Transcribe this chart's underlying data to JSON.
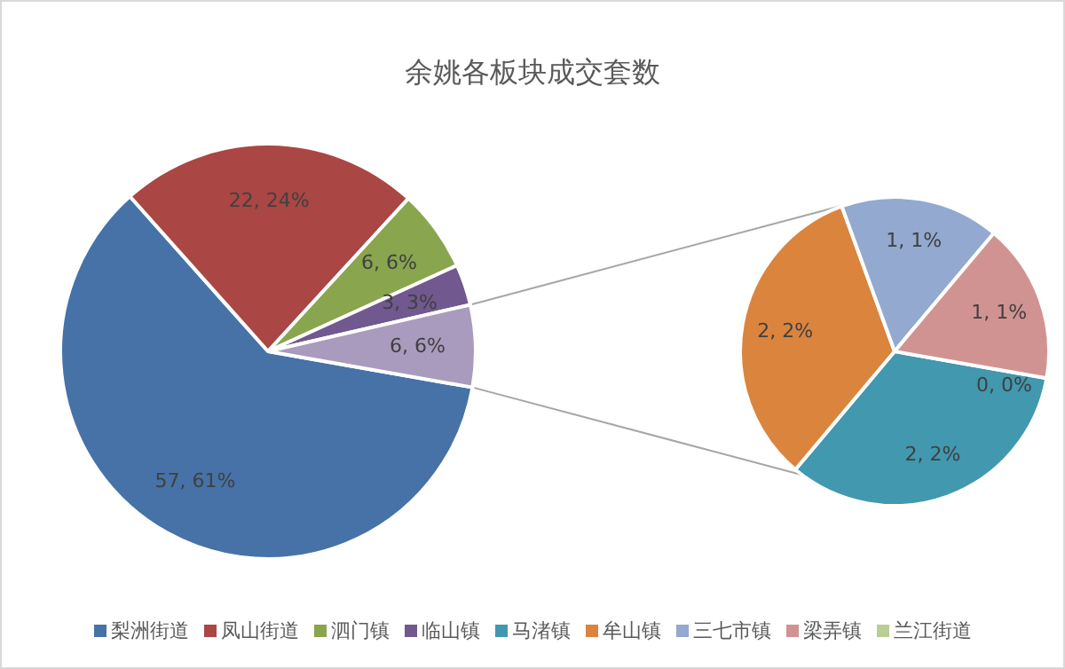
{
  "chart_data": [
    {
      "type": "pie",
      "title": "余姚各板块成交套数",
      "legend": "bottom",
      "categories": [
        "梨洲街道",
        "凤山街道",
        "泗门镇",
        "临山镇",
        null
      ],
      "values": [
        57,
        22,
        6,
        3,
        6
      ],
      "colors": [
        "#4672a8",
        "#aa4643",
        "#89a54e",
        "#71588f",
        "#a99bbd"
      ],
      "value_labels": [
        "57, 61%",
        "22, 24%",
        "6, 6%",
        "3, 3%",
        "6, 6%"
      ]
    },
    {
      "type": "pie",
      "legend": "bottom",
      "categories": [
        "马渚镇",
        "牟山镇",
        "三七市镇",
        "梁弄镇",
        "兰江街道"
      ],
      "values": [
        2,
        2,
        1,
        1,
        0
      ],
      "colors": [
        "#4198af",
        "#db843d",
        "#93a9cf",
        "#d19392",
        "#b9cd96"
      ],
      "value_labels": [
        "2, 2%",
        "2, 2%",
        "1, 1%",
        "1, 1%",
        "0, 0%"
      ]
    }
  ]
}
